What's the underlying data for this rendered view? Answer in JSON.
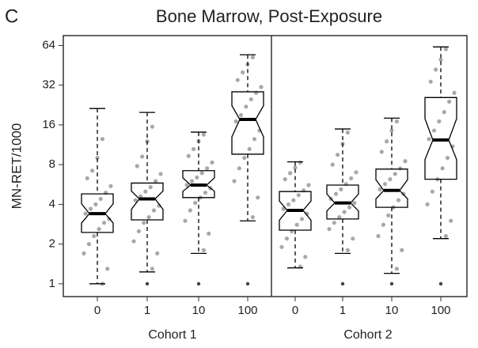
{
  "panel_label": "C",
  "chart_data": {
    "type": "boxplot",
    "title": "Bone Marrow, Post-Exposure",
    "ylabel": "MN-RET/1000",
    "log_base": 2,
    "notched": true,
    "ylim": [
      0.8,
      76
    ],
    "yticks": [
      1,
      2,
      4,
      8,
      16,
      32,
      64
    ],
    "box_color": "#000000",
    "point_color": "#a8a8a8",
    "panels": [
      {
        "xlabel": "Cohort 1",
        "categories": [
          "0",
          "1",
          "10",
          "100"
        ],
        "boxes": [
          {
            "low": 1.0,
            "q1": 2.45,
            "median": 3.4,
            "q3": 4.8,
            "high": 21.3,
            "outliers": [],
            "points": [
              1.0,
              1.3,
              1.7,
              2.0,
              2.3,
              2.6,
              2.9,
              3.1,
              3.4,
              3.7,
              4.0,
              4.4,
              4.9,
              5.5,
              6.3,
              7.2,
              9.0,
              12.5
            ]
          },
          {
            "low": 1.23,
            "q1": 3.05,
            "median": 4.4,
            "q3": 5.8,
            "high": 19.9,
            "outliers": [
              1
            ],
            "points": [
              1.3,
              1.7,
              2.1,
              2.5,
              2.9,
              3.2,
              3.6,
              3.9,
              4.3,
              4.6,
              5.0,
              5.4,
              6.0,
              6.8,
              7.8,
              9.2,
              12.0,
              15.5
            ]
          },
          {
            "low": 1.7,
            "q1": 4.5,
            "median": 5.6,
            "q3": 7.2,
            "high": 14.1,
            "outliers": [
              1
            ],
            "points": [
              1.8,
              2.4,
              3.0,
              3.6,
              4.1,
              4.5,
              4.9,
              5.3,
              5.6,
              6.0,
              6.4,
              6.9,
              7.5,
              8.3,
              9.3,
              10.5,
              12.0,
              13.5
            ]
          },
          {
            "low": 3.0,
            "q1": 9.6,
            "median": 17.6,
            "q3": 28.5,
            "high": 54.4,
            "outliers": [
              1
            ],
            "points": [
              3.2,
              4.5,
              6.0,
              7.5,
              9.0,
              10.5,
              12.5,
              14.5,
              17.0,
              19.0,
              22.0,
              25.0,
              28.0,
              31.0,
              35.0,
              40.0,
              46.0,
              52.0
            ]
          }
        ]
      },
      {
        "xlabel": "Cohort 2",
        "categories": [
          "0",
          "1",
          "10",
          "100"
        ],
        "boxes": [
          {
            "low": 1.32,
            "q1": 2.55,
            "median": 3.6,
            "q3": 5.0,
            "high": 8.4,
            "outliers": [],
            "points": [
              1.35,
              1.6,
              1.9,
              2.2,
              2.5,
              2.8,
              3.1,
              3.4,
              3.7,
              4.0,
              4.3,
              4.7,
              5.1,
              5.6,
              6.2,
              6.9,
              7.6,
              8.3
            ]
          },
          {
            "low": 1.7,
            "q1": 3.1,
            "median": 4.1,
            "q3": 5.6,
            "high": 14.9,
            "outliers": [
              1
            ],
            "points": [
              1.8,
              2.2,
              2.6,
              2.9,
              3.2,
              3.5,
              3.8,
              4.1,
              4.4,
              4.8,
              5.2,
              5.7,
              6.3,
              7.0,
              8.0,
              9.5,
              11.5,
              14.0
            ]
          },
          {
            "low": 1.2,
            "q1": 3.8,
            "median": 5.1,
            "q3": 7.4,
            "high": 18.0,
            "outliers": [
              1
            ],
            "points": [
              1.3,
              1.8,
              2.3,
              2.8,
              3.3,
              3.8,
              4.3,
              4.8,
              5.2,
              5.7,
              6.2,
              6.8,
              7.5,
              8.5,
              10.0,
              12.0,
              14.5,
              17.0
            ]
          },
          {
            "low": 2.2,
            "q1": 6.2,
            "median": 12.3,
            "q3": 25.8,
            "high": 62.4,
            "outliers": [
              1
            ],
            "points": [
              2.3,
              3.0,
              4.0,
              5.0,
              6.2,
              7.5,
              9.0,
              11.0,
              12.5,
              14.5,
              17.0,
              20.0,
              24.0,
              28.0,
              34.0,
              42.0,
              50.0,
              60.0
            ]
          }
        ]
      }
    ]
  }
}
